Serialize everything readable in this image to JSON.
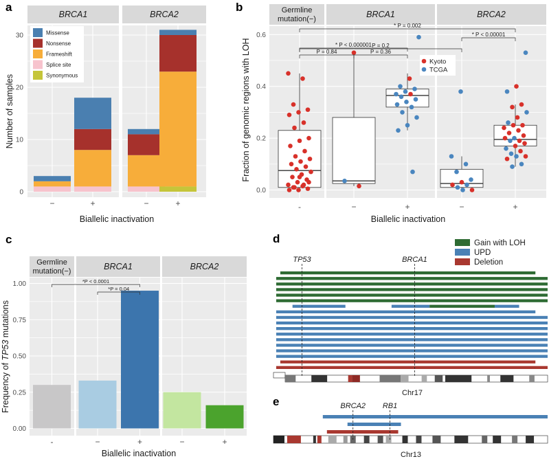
{
  "colors": {
    "missense": "#4a7fb0",
    "nonsense": "#a6312c",
    "frameshift": "#f7ad3a",
    "splice": "#f7c3cd",
    "synonymous": "#c5c53a",
    "kyoto": "#d8312a",
    "tcga": "#4a86bf",
    "gain_loh": "#2e6b33",
    "upd": "#4a81b5",
    "deletion": "#a93830"
  },
  "chart_data": [
    {
      "panel": "a",
      "type": "bar",
      "ylabel": "Number of samples",
      "xlabel": "Biallelic inactivation",
      "ylim": [
        0,
        32
      ],
      "yticks": [
        0,
        10,
        20,
        30
      ],
      "facets": [
        {
          "label": "BRCA1"
        },
        {
          "label": "BRCA2"
        }
      ],
      "categories": [
        "−",
        "+"
      ],
      "legend": [
        "Missense",
        "Nonsense",
        "Frameshift",
        "Splice site",
        "Synonymous"
      ],
      "stacks": [
        {
          "facet": 0,
          "cat": 0,
          "Synonymous": 0,
          "Splice site": 1,
          "Frameshift": 1,
          "Nonsense": 0,
          "Missense": 1
        },
        {
          "facet": 0,
          "cat": 1,
          "Synonymous": 0,
          "Splice site": 1,
          "Frameshift": 7,
          "Nonsense": 4,
          "Missense": 6
        },
        {
          "facet": 1,
          "cat": 0,
          "Synonymous": 0,
          "Splice site": 1,
          "Frameshift": 6,
          "Nonsense": 4,
          "Missense": 1
        },
        {
          "facet": 1,
          "cat": 1,
          "Synonymous": 1,
          "Splice site": 0,
          "Frameshift": 22,
          "Nonsense": 7,
          "Missense": 1
        }
      ]
    },
    {
      "panel": "b",
      "type": "scatter",
      "ylabel": "Fraction of genomic regions with LOH",
      "xlabel": "Biallelic inactivation",
      "ylim": [
        -0.03,
        0.63
      ],
      "yticks": [
        0.0,
        0.2,
        0.4,
        0.6
      ],
      "facets": [
        {
          "label": "Germline\nmutation(−)"
        },
        {
          "label": "BRCA1"
        },
        {
          "label": "BRCA2"
        }
      ],
      "xticks": [
        "-",
        "−",
        "+",
        "−",
        "+"
      ],
      "legend": [
        "Kyoto",
        "TCGA"
      ],
      "boxes": [
        {
          "q1": 0.01,
          "med": 0.075,
          "q3": 0.23,
          "lo": 0.0,
          "hi": 0.45
        },
        {
          "q1": 0.025,
          "med": 0.035,
          "q3": 0.28,
          "lo": 0.015,
          "hi": 0.53
        },
        {
          "q1": 0.32,
          "med": 0.365,
          "q3": 0.39,
          "lo": 0.23,
          "hi": 0.45
        },
        {
          "q1": 0.01,
          "med": 0.025,
          "q3": 0.08,
          "lo": 0.0,
          "hi": 0.13
        },
        {
          "q1": 0.17,
          "med": 0.195,
          "q3": 0.25,
          "lo": 0.09,
          "hi": 0.33
        }
      ],
      "points": [
        [
          [
            0.45,
            "K"
          ],
          [
            0.43,
            "K"
          ],
          [
            0.33,
            "K"
          ],
          [
            0.31,
            "K"
          ],
          [
            0.3,
            "K"
          ],
          [
            0.29,
            "K"
          ],
          [
            0.26,
            "K"
          ],
          [
            0.24,
            "K"
          ],
          [
            0.2,
            "K"
          ],
          [
            0.19,
            "K"
          ],
          [
            0.17,
            "K"
          ],
          [
            0.15,
            "K"
          ],
          [
            0.13,
            "K"
          ],
          [
            0.12,
            "K"
          ],
          [
            0.11,
            "K"
          ],
          [
            0.1,
            "K"
          ],
          [
            0.09,
            "K"
          ],
          [
            0.08,
            "K"
          ],
          [
            0.07,
            "K"
          ],
          [
            0.06,
            "K"
          ],
          [
            0.05,
            "K"
          ],
          [
            0.04,
            "K"
          ],
          [
            0.03,
            "K"
          ],
          [
            0.02,
            "K"
          ],
          [
            0.015,
            "K"
          ],
          [
            0.01,
            "K"
          ],
          [
            0.005,
            "K"
          ],
          [
            0.0,
            "K"
          ],
          [
            0.0,
            "K"
          ],
          [
            0.02,
            "K"
          ],
          [
            0.01,
            "K"
          ],
          [
            0.03,
            "K"
          ],
          [
            0.05,
            "K"
          ]
        ],
        [
          [
            0.53,
            "K"
          ],
          [
            0.035,
            "T"
          ],
          [
            0.015,
            "K"
          ]
        ],
        [
          [
            0.59,
            "T"
          ],
          [
            0.43,
            "K"
          ],
          [
            0.4,
            "T"
          ],
          [
            0.39,
            "T"
          ],
          [
            0.38,
            "T"
          ],
          [
            0.37,
            "T"
          ],
          [
            0.37,
            "K"
          ],
          [
            0.36,
            "T"
          ],
          [
            0.35,
            "T"
          ],
          [
            0.34,
            "T"
          ],
          [
            0.33,
            "T"
          ],
          [
            0.32,
            "T"
          ],
          [
            0.3,
            "T"
          ],
          [
            0.28,
            "T"
          ],
          [
            0.25,
            "T"
          ],
          [
            0.23,
            "T"
          ],
          [
            0.07,
            "T"
          ]
        ],
        [
          [
            0.38,
            "T"
          ],
          [
            0.13,
            "T"
          ],
          [
            0.1,
            "T"
          ],
          [
            0.07,
            "T"
          ],
          [
            0.04,
            "T"
          ],
          [
            0.03,
            "K"
          ],
          [
            0.02,
            "K"
          ],
          [
            0.02,
            "T"
          ],
          [
            0.01,
            "T"
          ],
          [
            0.0,
            "K"
          ],
          [
            0.0,
            "T"
          ]
        ],
        [
          [
            0.53,
            "T"
          ],
          [
            0.4,
            "K"
          ],
          [
            0.38,
            "T"
          ],
          [
            0.33,
            "K"
          ],
          [
            0.32,
            "K"
          ],
          [
            0.3,
            "T"
          ],
          [
            0.28,
            "K"
          ],
          [
            0.26,
            "T"
          ],
          [
            0.25,
            "K"
          ],
          [
            0.25,
            "K"
          ],
          [
            0.24,
            "K"
          ],
          [
            0.23,
            "K"
          ],
          [
            0.22,
            "K"
          ],
          [
            0.21,
            "K"
          ],
          [
            0.2,
            "T"
          ],
          [
            0.2,
            "K"
          ],
          [
            0.19,
            "K"
          ],
          [
            0.19,
            "T"
          ],
          [
            0.18,
            "K"
          ],
          [
            0.17,
            "K"
          ],
          [
            0.16,
            "T"
          ],
          [
            0.15,
            "K"
          ],
          [
            0.14,
            "T"
          ],
          [
            0.13,
            "K"
          ],
          [
            0.13,
            "T"
          ],
          [
            0.12,
            "K"
          ],
          [
            0.1,
            "T"
          ],
          [
            0.09,
            "T"
          ]
        ]
      ],
      "annotations": [
        {
          "from": 0,
          "to": 4,
          "star": "*",
          "text": "P = 0.002"
        },
        {
          "from": 3,
          "to": 4,
          "star": "*",
          "text": "P < 0.00001"
        },
        {
          "from": 0,
          "to": 2,
          "star": "*",
          "text": "P < 0.000001"
        },
        {
          "from": 0,
          "to": 3,
          "star": "",
          "text": "P = 0.2"
        },
        {
          "from": 0,
          "to": 1,
          "star": "",
          "text": "P = 0.84"
        },
        {
          "from": 1,
          "to": 2,
          "star": "",
          "text": "P = 0.36"
        }
      ]
    },
    {
      "panel": "c",
      "type": "bar",
      "ylabel_pre": "Frequency of ",
      "ylabel_gene": "TP53",
      "ylabel_post": " mutations",
      "xlabel": "Biallelic inactivation",
      "ylim": [
        0,
        1.05
      ],
      "yticks": [
        "0.00",
        "0.25",
        "0.50",
        "0.75",
        "1.00"
      ],
      "facets": [
        {
          "label": "Germline\nmutation(−)"
        },
        {
          "label": "BRCA1"
        },
        {
          "label": "BRCA2"
        }
      ],
      "categories": [
        "-",
        "−",
        "+",
        "−",
        "+"
      ],
      "values": [
        0.3,
        0.33,
        0.95,
        0.25,
        0.16
      ],
      "colors": [
        "#c8c7c8",
        "#a9cce2",
        "#3c75ad",
        "#c3e6a0",
        "#4ba32d"
      ],
      "annotations": [
        {
          "from": 0,
          "to": 2,
          "text": "*P < 0.0001"
        },
        {
          "from": 1,
          "to": 2,
          "text": "*P = 0.04"
        }
      ]
    },
    {
      "panel": "d",
      "type": "segments",
      "chromosome": "Chr17",
      "markers": [
        {
          "label": "TP53",
          "pos": 0.095
        },
        {
          "label": "BRCA1",
          "pos": 0.51
        }
      ],
      "legend": [
        "Gain with LOH",
        "UPD",
        "Deletion"
      ],
      "tracks": [
        [
          [
            "G",
            0.015,
            0.955
          ]
        ],
        [
          [
            "G",
            0.0,
            1.0
          ]
        ],
        [
          [
            "G",
            0.0,
            1.0
          ]
        ],
        [
          [
            "G",
            0.0,
            1.0
          ]
        ],
        [
          [
            "G",
            0.0,
            1.0
          ]
        ],
        [
          [
            "G",
            0.0,
            1.0
          ]
        ],
        [
          [
            "U",
            0.06,
            0.255
          ],
          [
            "U",
            0.425,
            0.565
          ],
          [
            "G",
            0.565,
            0.805
          ],
          [
            "U",
            0.805,
            0.895
          ]
        ],
        [
          [
            "U",
            0.0,
            0.955
          ]
        ],
        [
          [
            "U",
            0.0,
            1.0
          ]
        ],
        [
          [
            "U",
            0.0,
            1.0
          ]
        ],
        [
          [
            "U",
            0.0,
            1.0
          ]
        ],
        [
          [
            "U",
            0.0,
            1.0
          ]
        ],
        [
          [
            "U",
            0.0,
            1.0
          ]
        ],
        [
          [
            "U",
            0.0,
            1.0
          ]
        ],
        [
          [
            "U",
            0.0,
            1.0
          ]
        ],
        [
          [
            "U",
            0.0,
            1.0
          ]
        ],
        [
          [
            "D",
            0.015,
            0.955
          ]
        ],
        [
          [
            "D",
            0.0,
            1.0
          ]
        ]
      ]
    },
    {
      "panel": "e",
      "type": "segments",
      "chromosome": "Chr13",
      "markers": [
        {
          "label": "BRCA2",
          "pos": 0.29
        },
        {
          "label": "RB1",
          "pos": 0.425
        }
      ],
      "tracks": [
        [
          [
            "U",
            0.18,
            1.0
          ]
        ],
        [
          [
            "U",
            0.27,
            0.465
          ]
        ],
        [
          [
            "D",
            0.195,
            0.455
          ]
        ]
      ]
    }
  ]
}
